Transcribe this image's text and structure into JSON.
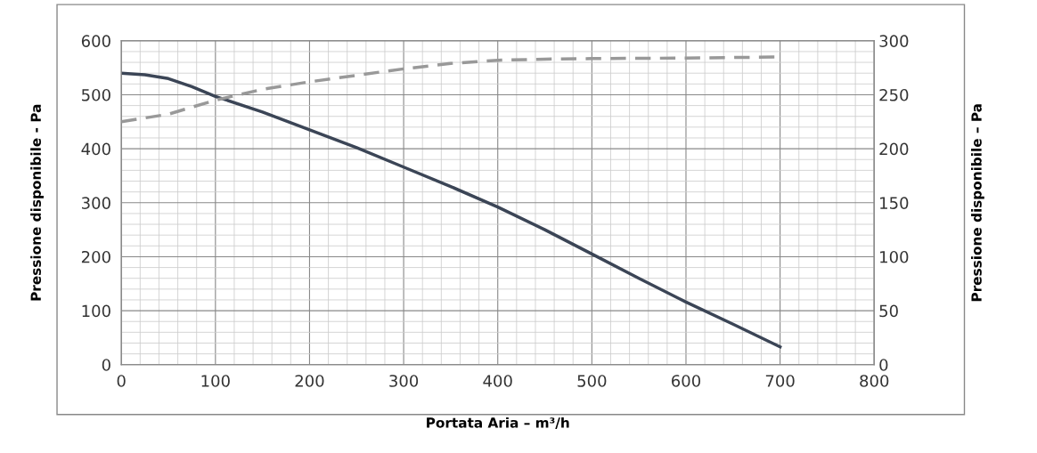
{
  "chart_data": {
    "type": "line",
    "xlabel": "Portata Aria – m³/h",
    "ylabel": "Pressione disponibile - Pa",
    "y2label": "Pressione disponibile – Pa",
    "xlim": [
      0,
      800
    ],
    "xticks": [
      0,
      100,
      200,
      300,
      400,
      500,
      600,
      700,
      800
    ],
    "ylim": [
      0,
      600
    ],
    "yticks": [
      0,
      100,
      200,
      300,
      400,
      500,
      600
    ],
    "y2lim": [
      0,
      300
    ],
    "y2ticks": [
      0,
      50,
      100,
      150,
      200,
      250,
      300
    ],
    "grid": true,
    "legend": false,
    "series": [
      {
        "color": "#3b4556",
        "line_style": "solid",
        "x": [
          0,
          25,
          50,
          75,
          100,
          150,
          200,
          250,
          300,
          350,
          400,
          450,
          500,
          550,
          600,
          650,
          700
        ],
        "values": [
          540,
          537,
          530,
          515,
          497,
          468,
          435,
          402,
          366,
          330,
          292,
          250,
          205,
          160,
          116,
          75,
          33
        ]
      },
      {
        "color": "#999999",
        "line_style": "dashed",
        "axis": "y2",
        "x": [
          0,
          50,
          100,
          150,
          200,
          250,
          300,
          350,
          400,
          450,
          500,
          600,
          700
        ],
        "values": [
          225,
          232,
          245,
          255,
          262,
          268,
          274,
          279,
          282,
          283,
          283.5,
          284,
          285
        ]
      }
    ]
  }
}
